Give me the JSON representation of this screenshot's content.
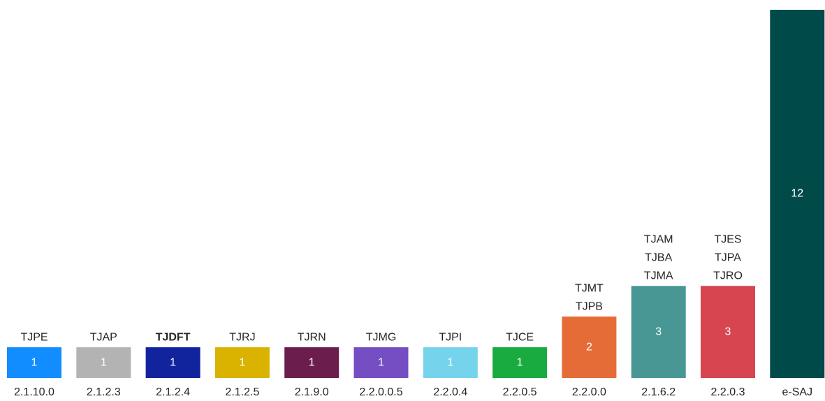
{
  "chart_data": {
    "type": "bar",
    "categories": [
      "2.1.10.0",
      "2.1.2.3",
      "2.1.2.4",
      "2.1.2.5",
      "2.1.9.0",
      "2.2.0.0.5",
      "2.2.0.4",
      "2.2.0.5",
      "2.2.0.0",
      "2.1.6.2",
      "2.2.0.3",
      "e-SAJ"
    ],
    "values": [
      1,
      1,
      1,
      1,
      1,
      1,
      1,
      1,
      2,
      3,
      3,
      12
    ],
    "colors": [
      "#118dff",
      "#b3b3b3",
      "#12239e",
      "#d9b300",
      "#6b1e4e",
      "#744ec2",
      "#75d3ec",
      "#1aab40",
      "#e66c37",
      "#489795",
      "#d64550",
      "#004a4a"
    ],
    "annotations": [
      [
        "TJPE"
      ],
      [
        "TJAP"
      ],
      [
        "TJDFT"
      ],
      [
        "TJRJ"
      ],
      [
        "TJRN"
      ],
      [
        "TJMG"
      ],
      [
        "TJPI"
      ],
      [
        "TJCE"
      ],
      [
        "TJMT",
        "TJPB"
      ],
      [
        "TJAM",
        "TJBA",
        "TJMA"
      ],
      [
        "TJES",
        "TJPA",
        "TJRO"
      ],
      []
    ],
    "annotation_bold": [
      false,
      false,
      true,
      false,
      false,
      false,
      false,
      false,
      false,
      false,
      false,
      false
    ],
    "ylim": [
      0,
      12
    ]
  }
}
